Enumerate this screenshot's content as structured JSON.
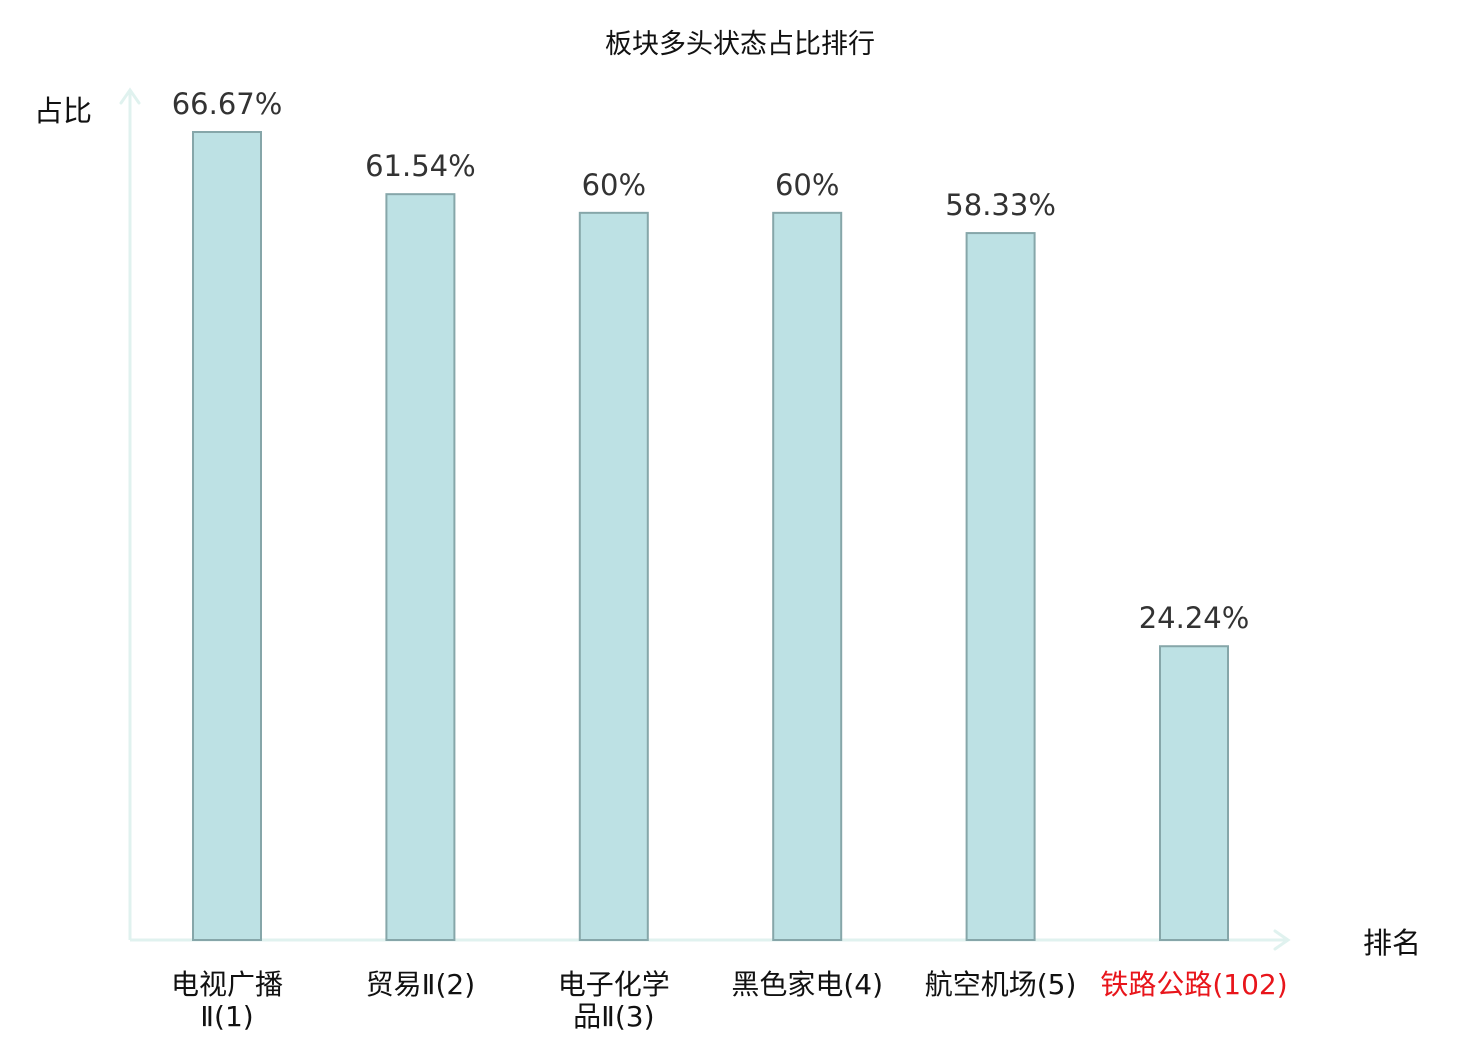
{
  "chart_data": {
    "type": "bar",
    "title": "板块多头状态占比排行",
    "ylabel": "占比",
    "xlabel": "排名",
    "ylim": [
      0,
      70
    ],
    "grid": false,
    "legend": "none",
    "categories": [
      {
        "lines": [
          "电视广播",
          "Ⅱ(1)"
        ],
        "highlight": false
      },
      {
        "lines": [
          "贸易Ⅱ(2)"
        ],
        "highlight": false
      },
      {
        "lines": [
          "电子化学",
          "品Ⅱ(3)"
        ],
        "highlight": false
      },
      {
        "lines": [
          "黑色家电(4)"
        ],
        "highlight": false
      },
      {
        "lines": [
          "航空机场(5)"
        ],
        "highlight": false
      },
      {
        "lines": [
          "铁路公路(102)"
        ],
        "highlight": true
      }
    ],
    "values": [
      66.67,
      61.54,
      60,
      60,
      58.33,
      24.24
    ],
    "value_labels": [
      "66.67%",
      "61.54%",
      "60%",
      "60%",
      "58.33%",
      "24.24%"
    ]
  },
  "colors": {
    "bar_fill": "#bde1e4",
    "bar_stroke": "#86a6a9",
    "axis": "#e0f2ef",
    "text": "#333333",
    "label": "#111111",
    "highlight": "#e8151b"
  }
}
